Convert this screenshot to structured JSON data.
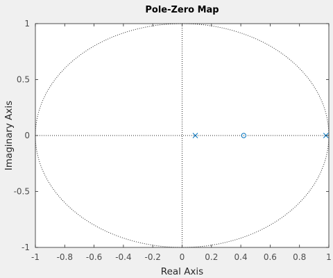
{
  "chart_data": {
    "type": "scatter",
    "title": "Pole-Zero Map",
    "xlabel": "Real Axis",
    "ylabel": "Imaginary Axis",
    "xlim": [
      -1,
      1
    ],
    "ylim": [
      -1,
      1
    ],
    "xticks": [
      -1,
      -0.8,
      -0.6,
      -0.4,
      -0.2,
      0,
      0.2,
      0.4,
      0.6,
      0.8,
      1
    ],
    "xtick_labels": [
      "-1",
      "-0.8",
      "-0.6",
      "-0.4",
      "-0.2",
      "0",
      "0.2",
      "0.4",
      "0.6",
      "0.8",
      "1"
    ],
    "yticks": [
      -1,
      -0.5,
      0,
      0.5,
      1
    ],
    "ytick_labels": [
      "-1",
      "-0.5",
      "0",
      "0.5",
      "1"
    ],
    "grid": false,
    "unit_circle": true,
    "series": [
      {
        "marker": "x",
        "points": [
          [
            0.09,
            0
          ],
          [
            0.98,
            0
          ]
        ]
      },
      {
        "marker": "o",
        "points": [
          [
            0.42,
            0
          ]
        ]
      }
    ],
    "colors": {
      "marker": "#0072bd",
      "frame": "#262626",
      "plot_bg": "#ffffff",
      "figure_bg": "#f0f0f0",
      "reference": "#262626"
    }
  }
}
